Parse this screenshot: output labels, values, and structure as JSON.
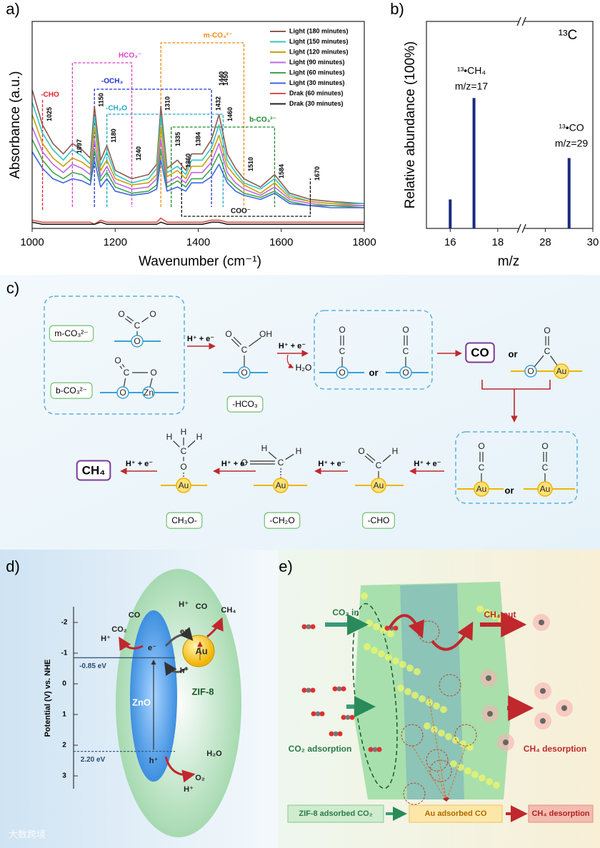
{
  "chart_data": [
    {
      "type": "line",
      "panel_label": "a)",
      "xlabel": "Wavenumber (cm⁻¹)",
      "ylabel": "Absorbance (a.u.)",
      "x": [
        1000,
        1025,
        1050,
        1075,
        1097,
        1120,
        1140,
        1150,
        1165,
        1180,
        1200,
        1240,
        1280,
        1300,
        1310,
        1325,
        1350,
        1370,
        1384,
        1410,
        1432,
        1450,
        1470,
        1490,
        1510,
        1550,
        1584,
        1620,
        1670,
        1720,
        1800
      ],
      "xlim": [
        1000,
        1800
      ],
      "xticks": [
        1000,
        1200,
        1400,
        1600,
        1800
      ],
      "ylim": [
        0,
        1
      ],
      "legend": "upper right",
      "series": [
        {
          "name": "Light (180 minutes)",
          "color": "#8c5a4e",
          "values": [
            0.67,
            0.5,
            0.41,
            0.36,
            0.41,
            0.38,
            0.34,
            0.59,
            0.33,
            0.4,
            0.28,
            0.24,
            0.26,
            0.31,
            0.59,
            0.29,
            0.33,
            0.28,
            0.36,
            0.36,
            0.43,
            0.55,
            0.36,
            0.29,
            0.24,
            0.2,
            0.26,
            0.17,
            0.14,
            0.13,
            0.12
          ]
        },
        {
          "name": "Light (150 minutes)",
          "color": "#33c4c4",
          "values": [
            0.61,
            0.46,
            0.38,
            0.33,
            0.38,
            0.35,
            0.31,
            0.54,
            0.3,
            0.37,
            0.26,
            0.22,
            0.24,
            0.29,
            0.54,
            0.27,
            0.3,
            0.26,
            0.33,
            0.33,
            0.39,
            0.5,
            0.33,
            0.27,
            0.22,
            0.19,
            0.24,
            0.16,
            0.13,
            0.12,
            0.12
          ]
        },
        {
          "name": "Light (120 minutes)",
          "color": "#c9a20a",
          "values": [
            0.55,
            0.41,
            0.34,
            0.3,
            0.34,
            0.32,
            0.29,
            0.49,
            0.28,
            0.33,
            0.24,
            0.21,
            0.22,
            0.26,
            0.49,
            0.25,
            0.28,
            0.24,
            0.3,
            0.3,
            0.36,
            0.45,
            0.3,
            0.25,
            0.21,
            0.17,
            0.22,
            0.15,
            0.13,
            0.12,
            0.11
          ]
        },
        {
          "name": "Light (90 minutes)",
          "color": "#c266e0",
          "values": [
            0.49,
            0.37,
            0.31,
            0.27,
            0.31,
            0.29,
            0.26,
            0.43,
            0.25,
            0.3,
            0.22,
            0.19,
            0.2,
            0.24,
            0.43,
            0.22,
            0.25,
            0.22,
            0.27,
            0.27,
            0.32,
            0.41,
            0.27,
            0.22,
            0.19,
            0.16,
            0.2,
            0.14,
            0.12,
            0.11,
            0.11
          ]
        },
        {
          "name": "Light (60 minutes)",
          "color": "#3ea64a",
          "values": [
            0.43,
            0.33,
            0.27,
            0.24,
            0.27,
            0.26,
            0.23,
            0.38,
            0.23,
            0.27,
            0.2,
            0.17,
            0.18,
            0.21,
            0.38,
            0.2,
            0.23,
            0.2,
            0.24,
            0.24,
            0.29,
            0.36,
            0.24,
            0.2,
            0.17,
            0.15,
            0.18,
            0.13,
            0.11,
            0.11,
            0.1
          ]
        },
        {
          "name": "Light (30 minutes)",
          "color": "#3f66e0",
          "values": [
            0.37,
            0.29,
            0.24,
            0.22,
            0.24,
            0.23,
            0.21,
            0.33,
            0.2,
            0.24,
            0.18,
            0.16,
            0.17,
            0.19,
            0.33,
            0.18,
            0.2,
            0.18,
            0.22,
            0.22,
            0.25,
            0.31,
            0.22,
            0.18,
            0.16,
            0.14,
            0.17,
            0.12,
            0.11,
            0.1,
            0.1
          ]
        },
        {
          "name": "Drak (60 minutes)",
          "color": "#e0504a",
          "values": [
            0.04,
            0.03,
            0.03,
            0.03,
            0.03,
            0.03,
            0.03,
            0.02,
            0.04,
            0.03,
            0.03,
            0.03,
            0.03,
            0.03,
            0.05,
            0.03,
            0.03,
            0.03,
            0.03,
            0.03,
            0.04,
            0.04,
            0.03,
            0.03,
            0.03,
            0.03,
            0.03,
            0.03,
            0.03,
            0.03,
            0.03
          ]
        },
        {
          "name": "Drak (30 minutes)",
          "color": "#222222",
          "values": [
            0.03,
            0.02,
            0.02,
            0.02,
            0.02,
            0.02,
            0.02,
            0.02,
            0.03,
            0.02,
            0.02,
            0.02,
            0.02,
            0.02,
            0.03,
            0.02,
            0.02,
            0.02,
            0.02,
            0.02,
            0.03,
            0.03,
            0.02,
            0.02,
            0.02,
            0.02,
            0.02,
            0.02,
            0.02,
            0.02,
            0.02
          ]
        }
      ],
      "peak_labels": [
        1025,
        1097,
        1150,
        1180,
        1240,
        1310,
        1335,
        1360,
        1384,
        1432,
        1440,
        1450,
        1460,
        1510,
        1584,
        1670
      ],
      "groups": [
        {
          "label": "-CHO",
          "color": "#e0202a",
          "range": [
            1025,
            1025
          ]
        },
        {
          "label": "HCO₃⁻",
          "color": "#e040c8",
          "range": [
            1097,
            1240
          ]
        },
        {
          "label": "m-CO₃²⁻",
          "color": "#f08a10",
          "range": [
            1310,
            1510
          ]
        },
        {
          "label": "-OCH₃",
          "color": "#2030c8",
          "range": [
            1150,
            1432
          ]
        },
        {
          "label": "-CH₂O",
          "color": "#20a8c8",
          "range": [
            1180,
            1460
          ]
        },
        {
          "label": "b-CO₃²⁻",
          "color": "#1a8a2a",
          "range": [
            1335,
            1584
          ]
        },
        {
          "label": "COO⁻",
          "color": "#111111",
          "range": [
            1360,
            1670
          ]
        }
      ]
    },
    {
      "type": "bar",
      "panel_label": "b)",
      "xlabel": "m/z",
      "ylabel": "Relative abundance (100%)",
      "x": [
        16,
        17,
        29
      ],
      "values": [
        14,
        63,
        34
      ],
      "color": "#1a2a80",
      "xlim": [
        15,
        30
      ],
      "xbreak": [
        19,
        27
      ],
      "xticks": [
        16,
        18,
        28,
        30
      ],
      "ylim": [
        0,
        100
      ],
      "annotations": [
        "¹³•CH₄",
        "m/z=17",
        "¹³•CO",
        "m/z=29",
        "¹³C"
      ]
    }
  ],
  "scheme": {
    "panel_label": "c)",
    "structures": [
      {
        "atoms": [
          "O",
          "C",
          "O",
          "O"
        ]
      },
      {
        "atoms": [
          "O",
          "C",
          "O",
          "O",
          "Zn"
        ]
      },
      {
        "atoms": [
          "O",
          "C",
          "OH",
          "O"
        ]
      },
      {
        "atoms": [
          "O",
          "C",
          "O"
        ]
      },
      {
        "atoms": [
          "O",
          "C",
          "O"
        ]
      },
      {
        "atoms": [
          "O",
          "C",
          "O",
          "Au"
        ]
      },
      {
        "atoms": [
          "O",
          "C",
          "Au"
        ]
      },
      {
        "atoms": [
          "O",
          "C",
          "Au"
        ]
      },
      {
        "atoms": [
          "O",
          "C",
          "H",
          "Au"
        ]
      },
      {
        "atoms": [
          "O",
          "C",
          "H",
          "H",
          "Au"
        ]
      },
      {
        "atoms": [
          "H",
          "H",
          "H",
          "C",
          "O",
          "Au"
        ]
      }
    ],
    "species": [
      "m-CO₃²⁻",
      "b-CO₃²⁻",
      "-HCO₃",
      "CO",
      "CH₄",
      "CH₃O-",
      "-CH₂O",
      "-CHO"
    ],
    "steps": [
      "H⁺ + e⁻",
      "H⁺ + e⁻",
      "H⁺ + e⁻",
      "H⁺ + e⁻",
      "H⁺ + e⁻",
      "H⁺ + e⁻"
    ],
    "byproduct": "H₂O",
    "or": [
      "or",
      "or",
      "or"
    ]
  },
  "band_diagram": {
    "panel_label": "d)",
    "axis_label": "Potential (V) vs. NHE",
    "ticks": [
      -2,
      -1,
      0,
      1,
      2,
      3
    ],
    "levels": [
      {
        "value": -0.85,
        "label": "-0.85 eV"
      },
      {
        "value": 2.2,
        "label": "2.20 eV"
      }
    ],
    "labels": [
      "ZnO",
      "ZIF-8",
      "Au",
      "e⁻",
      "e⁻",
      "h⁺",
      "h⁺",
      "CO₂",
      "H⁺",
      "CO",
      "H⁺",
      "CO",
      "CH₄",
      "H₂O",
      "O₂",
      "H⁺"
    ]
  },
  "process": {
    "panel_label": "e)",
    "labels": [
      "CO₂ in",
      "CH₄ out",
      "CO₂ adsorption",
      "CH₄ desorption"
    ],
    "flow": [
      "ZIF-8 adsorbed CO₂",
      "Au adsorbed CO",
      "CH₄ desorption"
    ]
  },
  "watermark": "大数跨境"
}
